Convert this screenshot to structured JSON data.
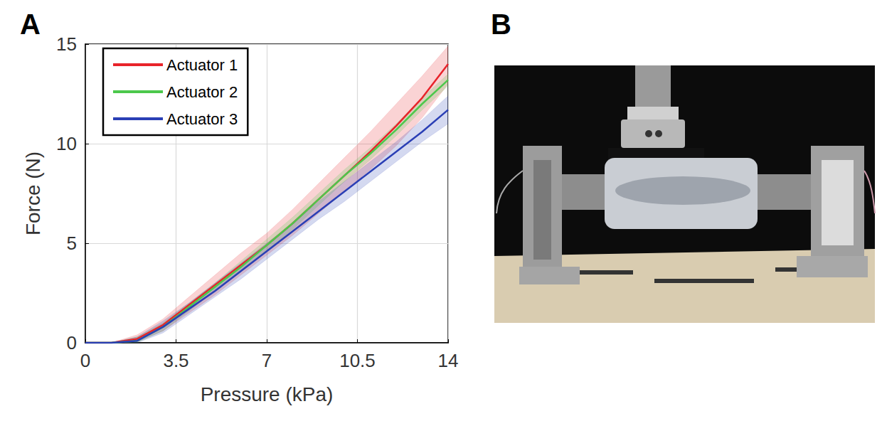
{
  "panel_labels": [
    "A",
    "B"
  ],
  "chart_data": {
    "type": "line",
    "x_label": "Pressure (kPa)",
    "y_label": "Force (N)",
    "x": [
      0,
      1,
      2,
      3,
      4,
      5,
      6,
      7,
      8,
      9,
      10,
      11,
      12,
      13,
      14
    ],
    "series": [
      {
        "name": "Actuator 1",
        "color": "#e8232a",
        "values": [
          0,
          0,
          0.2,
          0.9,
          1.9,
          2.9,
          3.9,
          4.9,
          6.0,
          7.2,
          8.4,
          9.6,
          10.9,
          12.3,
          14.0
        ],
        "lower": [
          0,
          0,
          0.05,
          0.6,
          1.5,
          2.4,
          3.4,
          4.4,
          5.4,
          6.5,
          7.6,
          8.7,
          9.9,
          11.3,
          13.0
        ],
        "upper": [
          0,
          0,
          0.4,
          1.2,
          2.3,
          3.4,
          4.5,
          5.5,
          6.7,
          8.0,
          9.3,
          10.6,
          12.0,
          13.4,
          14.9
        ]
      },
      {
        "name": "Actuator 2",
        "color": "#4cc84c",
        "values": [
          0,
          0,
          0.1,
          0.8,
          1.8,
          2.8,
          3.8,
          4.9,
          6.0,
          7.2,
          8.4,
          9.5,
          10.7,
          12.0,
          13.2
        ],
        "lower": [
          0,
          0,
          0.02,
          0.6,
          1.6,
          2.6,
          3.6,
          4.6,
          5.7,
          6.9,
          8.1,
          9.2,
          10.4,
          11.7,
          12.9
        ],
        "upper": [
          0,
          0,
          0.3,
          1.0,
          2.0,
          3.0,
          4.1,
          5.2,
          6.3,
          7.5,
          8.7,
          9.8,
          11.0,
          12.3,
          13.5
        ]
      },
      {
        "name": "Actuator 3",
        "color": "#2a3fb5",
        "values": [
          0,
          0,
          0.1,
          0.8,
          1.7,
          2.6,
          3.6,
          4.6,
          5.6,
          6.6,
          7.6,
          8.6,
          9.6,
          10.6,
          11.7
        ],
        "lower": [
          0,
          0,
          0,
          0.5,
          1.4,
          2.3,
          3.2,
          4.2,
          5.2,
          6.2,
          7.1,
          8.1,
          9.1,
          10.1,
          11.0
        ],
        "upper": [
          0,
          0,
          0.3,
          1.1,
          2.0,
          3.0,
          4.0,
          5.0,
          6.0,
          7.1,
          8.1,
          9.1,
          10.1,
          11.2,
          12.4
        ]
      }
    ],
    "xlim": [
      0,
      14
    ],
    "xticks": [
      0,
      3.5,
      7,
      10.5,
      14
    ],
    "ylim": [
      0,
      15
    ],
    "yticks": [
      0,
      5,
      10,
      15
    ],
    "grid": true,
    "legend": "upper left"
  }
}
